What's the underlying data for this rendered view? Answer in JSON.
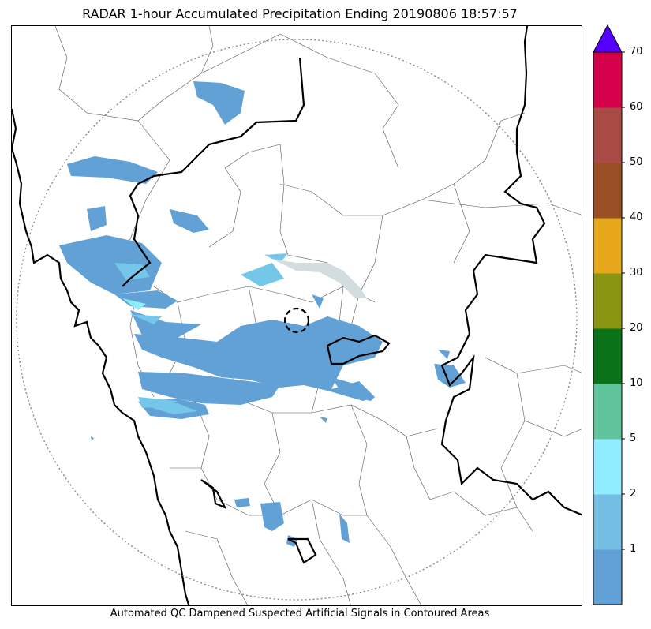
{
  "title": "RADAR 1-hour Accumulated Precipitation Ending 20190806 18:57:57",
  "footer": "Automated QC Dampened Suspected Artificial Signals in Contoured Areas",
  "colorbar": {
    "extend_color": "#5500ff",
    "colors": [
      "#62a1d6",
      "#74bde3",
      "#90ecff",
      "#5fc39b",
      "#0a7218",
      "#8a9612",
      "#e6a81a",
      "#9b4f27",
      "#a94a44",
      "#d5004a"
    ],
    "tick_labels": [
      "1",
      "2",
      "5",
      "10",
      "20",
      "30",
      "40",
      "50",
      "60",
      "70"
    ]
  },
  "map": {
    "rain_light": "#62a1d6",
    "rain_medium": "#74c7e8",
    "rain_heavy": "#8cecf5",
    "range_ring_color": "#888888"
  }
}
